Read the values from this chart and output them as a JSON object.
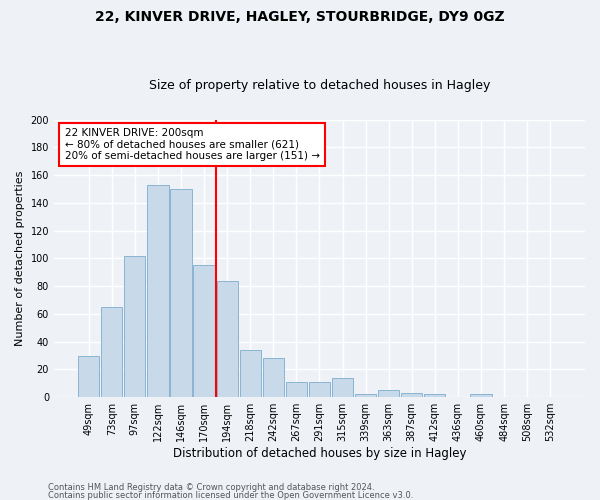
{
  "title1": "22, KINVER DRIVE, HAGLEY, STOURBRIDGE, DY9 0GZ",
  "title2": "Size of property relative to detached houses in Hagley",
  "xlabel": "Distribution of detached houses by size in Hagley",
  "ylabel": "Number of detached properties",
  "categories": [
    "49sqm",
    "73sqm",
    "97sqm",
    "122sqm",
    "146sqm",
    "170sqm",
    "194sqm",
    "218sqm",
    "242sqm",
    "267sqm",
    "291sqm",
    "315sqm",
    "339sqm",
    "363sqm",
    "387sqm",
    "412sqm",
    "436sqm",
    "460sqm",
    "484sqm",
    "508sqm",
    "532sqm"
  ],
  "values": [
    30,
    65,
    102,
    153,
    150,
    95,
    84,
    34,
    28,
    11,
    11,
    14,
    2,
    5,
    3,
    2,
    0,
    2,
    0,
    0,
    0
  ],
  "bar_color": "#c8daea",
  "bar_edge_color": "#8ab4d4",
  "vline_x_index": 6,
  "annotation_box_text_line1": "22 KINVER DRIVE: 200sqm",
  "annotation_box_text_line2": "← 80% of detached houses are smaller (621)",
  "annotation_box_text_line3": "20% of semi-detached houses are larger (151) →",
  "annotation_box_color": "white",
  "annotation_box_edge_color": "red",
  "vline_color": "red",
  "ylim": [
    0,
    200
  ],
  "yticks": [
    0,
    20,
    40,
    60,
    80,
    100,
    120,
    140,
    160,
    180,
    200
  ],
  "footer1": "Contains HM Land Registry data © Crown copyright and database right 2024.",
  "footer2": "Contains public sector information licensed under the Open Government Licence v3.0.",
  "bg_color": "#eef2f7",
  "plot_bg_color": "#eef2f7",
  "grid_color": "white",
  "title1_fontsize": 10,
  "title2_fontsize": 9,
  "xlabel_fontsize": 8.5,
  "ylabel_fontsize": 8,
  "tick_fontsize": 7,
  "annotation_fontsize": 7.5,
  "footer_fontsize": 6
}
